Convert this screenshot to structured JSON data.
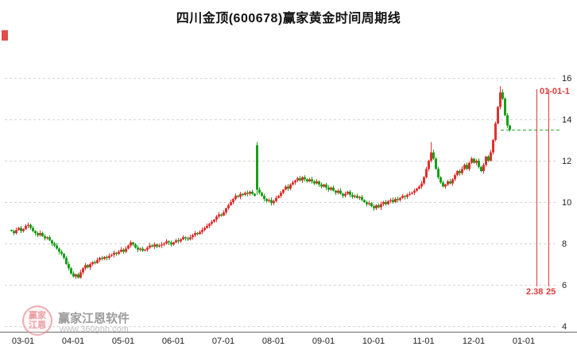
{
  "title": "四川金顶(600678)赢家黄金时间周期线",
  "watermark": {
    "logo_top": "赢家",
    "logo_bottom": "江恩",
    "brand": "赢家江恩软件",
    "url": "www.360gnn.com"
  },
  "annotations": {
    "cycle_label_top": "01-01-1",
    "cycle_label_bottom_left": "2.38",
    "cycle_label_bottom_right": "25",
    "cycle_line_color": "#e03a3a",
    "ref_line_value": 13.5,
    "ref_line_color": "#2fa82f"
  },
  "chart_data": {
    "type": "candlestick",
    "title": "四川金顶(600678)赢家黄金时间周期线",
    "ylim": [
      4,
      16
    ],
    "yticks": [
      16,
      14,
      12,
      10,
      8,
      6,
      4
    ],
    "grid": "horizontal-dashed",
    "legend": "none",
    "up_color": "#e03030",
    "down_color": "#18a018",
    "xticks": [
      {
        "label": "03-01",
        "i": 5
      },
      {
        "label": "04-01",
        "i": 26
      },
      {
        "label": "05-01",
        "i": 47
      },
      {
        "label": "06-01",
        "i": 68
      },
      {
        "label": "07-01",
        "i": 89
      },
      {
        "label": "08-01",
        "i": 110
      },
      {
        "label": "09-01",
        "i": 131
      },
      {
        "label": "10-01",
        "i": 152
      },
      {
        "label": "11-01",
        "i": 173
      },
      {
        "label": "12-01",
        "i": 194
      },
      {
        "label": "01-01",
        "i": 215
      }
    ],
    "closes": [
      8.6,
      8.5,
      8.65,
      8.75,
      8.6,
      8.7,
      8.85,
      8.9,
      8.75,
      8.6,
      8.5,
      8.4,
      8.5,
      8.35,
      8.25,
      8.3,
      8.15,
      8.0,
      7.9,
      7.75,
      7.6,
      7.5,
      7.3,
      7.0,
      6.8,
      6.55,
      6.4,
      6.5,
      6.35,
      6.6,
      6.8,
      6.95,
      6.85,
      7.0,
      7.1,
      7.05,
      7.2,
      7.3,
      7.25,
      7.35,
      7.3,
      7.4,
      7.45,
      7.55,
      7.5,
      7.6,
      7.7,
      7.6,
      7.75,
      7.9,
      8.05,
      7.95,
      7.8,
      7.7,
      7.75,
      7.65,
      7.7,
      7.8,
      7.9,
      7.85,
      7.95,
      7.85,
      7.9,
      7.95,
      8.0,
      8.1,
      8.05,
      7.95,
      8.05,
      8.15,
      8.1,
      8.2,
      8.3,
      8.25,
      8.2,
      8.3,
      8.4,
      8.5,
      8.45,
      8.55,
      8.65,
      8.75,
      8.85,
      8.95,
      9.05,
      9.15,
      9.3,
      9.4,
      9.35,
      9.5,
      9.7,
      9.85,
      10.0,
      10.15,
      10.3,
      10.25,
      10.4,
      10.35,
      10.45,
      10.4,
      10.5,
      10.4,
      10.3,
      10.6,
      10.45,
      10.3,
      10.15,
      10.05,
      10.1,
      9.95,
      10.05,
      10.2,
      10.3,
      10.45,
      10.6,
      10.75,
      10.65,
      10.85,
      10.95,
      11.05,
      11.15,
      11.05,
      11.2,
      11.1,
      11.0,
      11.1,
      11.0,
      10.9,
      11.0,
      10.85,
      10.75,
      10.85,
      10.7,
      10.6,
      10.7,
      10.55,
      10.45,
      10.55,
      10.4,
      10.3,
      10.4,
      10.5,
      10.35,
      10.25,
      10.3,
      10.2,
      10.25,
      10.1,
      10.0,
      9.9,
      9.95,
      9.8,
      9.7,
      9.85,
      9.75,
      9.9,
      10.0,
      9.9,
      10.05,
      10.1,
      10.0,
      10.15,
      10.1,
      10.2,
      10.3,
      10.25,
      10.35,
      10.4,
      10.45,
      10.55,
      10.65,
      10.75,
      10.9,
      11.2,
      11.6,
      12.0,
      12.4,
      12.1,
      11.6,
      11.2,
      10.95,
      10.75,
      10.85,
      11.0,
      10.9,
      11.1,
      11.3,
      11.5,
      11.4,
      11.6,
      11.8,
      11.6,
      11.9,
      12.1,
      11.9,
      12.0,
      11.7,
      11.5,
      11.8,
      12.2,
      12.0,
      12.4,
      13.0,
      13.8,
      14.6,
      15.3,
      15.0,
      14.2,
      13.7,
      13.5
    ],
    "overrides": [
      {
        "i": 28,
        "l": 6.3
      },
      {
        "i": 103,
        "o": 12.75,
        "h": 12.9,
        "l": 10.35
      },
      {
        "i": 176,
        "h": 12.9
      },
      {
        "i": 205,
        "h": 15.6
      },
      {
        "i": 206,
        "h": 15.45
      }
    ]
  }
}
